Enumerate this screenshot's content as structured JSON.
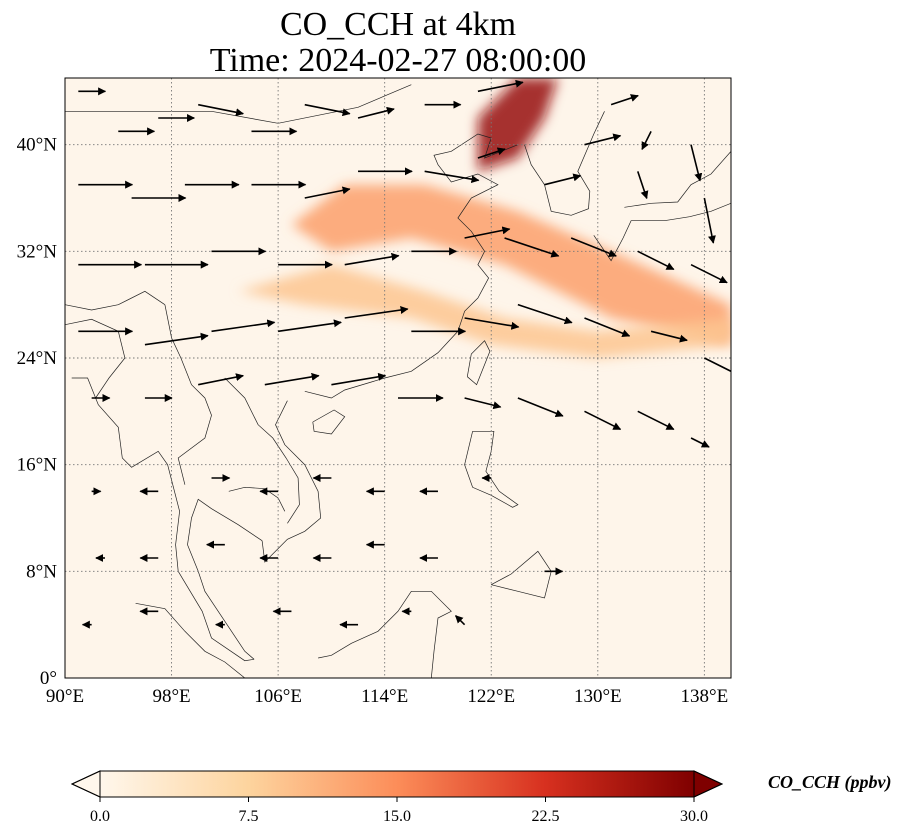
{
  "title": {
    "line1": "CO_CCH at 4km",
    "line2": "Time: 2024-02-27 08:00:00"
  },
  "map": {
    "projection": "PlateCarree",
    "lon_range": [
      90,
      140
    ],
    "lat_range": [
      0,
      45
    ],
    "lat_ticks": [
      {
        "value": 0,
        "label": "0°"
      },
      {
        "value": 8,
        "label": "8°N"
      },
      {
        "value": 16,
        "label": "16°N"
      },
      {
        "value": 24,
        "label": "24°N"
      },
      {
        "value": 32,
        "label": "32°N"
      },
      {
        "value": 40,
        "label": "40°N"
      }
    ],
    "lon_ticks": [
      {
        "value": 90,
        "label": "90°E"
      },
      {
        "value": 98,
        "label": "98°E"
      },
      {
        "value": 106,
        "label": "106°E"
      },
      {
        "value": 114,
        "label": "114°E"
      },
      {
        "value": 122,
        "label": "122°E"
      },
      {
        "value": 130,
        "label": "130°E"
      },
      {
        "value": 138,
        "label": "138°E"
      }
    ],
    "gridlines": "dotted",
    "background_color": "#fef5ea"
  },
  "colorbar": {
    "label": "CO_CCH (ppbv)",
    "min": 0.0,
    "max": 30.0,
    "extend": "both",
    "colormap": "OrRd",
    "ticks": [
      {
        "value": 0.0,
        "label": "0.0"
      },
      {
        "value": 7.5,
        "label": "7.5"
      },
      {
        "value": 15.0,
        "label": "15.0"
      },
      {
        "value": 22.5,
        "label": "22.5"
      },
      {
        "value": 30.0,
        "label": "30.0"
      }
    ],
    "stops": [
      "#fff7ec",
      "#fdd49e",
      "#fc8d59",
      "#d7301f",
      "#7f0000"
    ]
  },
  "plumes": [
    {
      "name": "northern-plume",
      "lonlat": [
        [
          121,
          42
        ],
        [
          124,
          45
        ],
        [
          127,
          45
        ],
        [
          126,
          42
        ],
        [
          124,
          39
        ],
        [
          121,
          38
        ]
      ],
      "value": 28
    },
    {
      "name": "central-band",
      "lonlat": [
        [
          107,
          34
        ],
        [
          111,
          37
        ],
        [
          117,
          37
        ],
        [
          124,
          35
        ],
        [
          131,
          32
        ],
        [
          140,
          28
        ],
        [
          140,
          25
        ],
        [
          131,
          27
        ],
        [
          123,
          31
        ],
        [
          116,
          33
        ],
        [
          110,
          32
        ]
      ],
      "value": 13
    },
    {
      "name": "southern-band",
      "lonlat": [
        [
          103,
          29
        ],
        [
          110,
          31
        ],
        [
          117,
          29
        ],
        [
          123,
          27
        ],
        [
          130,
          26
        ],
        [
          140,
          27
        ],
        [
          140,
          25
        ],
        [
          130,
          24
        ],
        [
          122,
          25
        ],
        [
          116,
          27
        ],
        [
          108,
          28
        ]
      ],
      "value": 9
    }
  ],
  "wind_vectors": [
    {
      "lon": 91,
      "lat": 44,
      "u": 3,
      "v": 0
    },
    {
      "lon": 94,
      "lat": 41,
      "u": 4,
      "v": 0
    },
    {
      "lon": 97,
      "lat": 42,
      "u": 4,
      "v": 0
    },
    {
      "lon": 100,
      "lat": 43,
      "u": 5,
      "v": -1
    },
    {
      "lon": 104,
      "lat": 41,
      "u": 5,
      "v": 0
    },
    {
      "lon": 108,
      "lat": 43,
      "u": 5,
      "v": -1
    },
    {
      "lon": 112,
      "lat": 42,
      "u": 4,
      "v": 1
    },
    {
      "lon": 117,
      "lat": 43,
      "u": 4,
      "v": 0
    },
    {
      "lon": 121,
      "lat": 44,
      "u": 5,
      "v": 1
    },
    {
      "lon": 131,
      "lat": 43,
      "u": 3,
      "v": 1
    },
    {
      "lon": 134,
      "lat": 41,
      "u": -1,
      "v": -2
    },
    {
      "lon": 137,
      "lat": 40,
      "u": 1,
      "v": -4
    },
    {
      "lon": 91,
      "lat": 37,
      "u": 6,
      "v": 0
    },
    {
      "lon": 95,
      "lat": 36,
      "u": 6,
      "v": 0
    },
    {
      "lon": 99,
      "lat": 37,
      "u": 6,
      "v": 0
    },
    {
      "lon": 104,
      "lat": 37,
      "u": 6,
      "v": 0
    },
    {
      "lon": 108,
      "lat": 36,
      "u": 5,
      "v": 1
    },
    {
      "lon": 112,
      "lat": 38,
      "u": 6,
      "v": 0
    },
    {
      "lon": 117,
      "lat": 38,
      "u": 6,
      "v": -1
    },
    {
      "lon": 121,
      "lat": 39,
      "u": 3,
      "v": 1
    },
    {
      "lon": 126,
      "lat": 37,
      "u": 4,
      "v": 1
    },
    {
      "lon": 129,
      "lat": 40,
      "u": 4,
      "v": 1
    },
    {
      "lon": 133,
      "lat": 38,
      "u": 1,
      "v": -3
    },
    {
      "lon": 138,
      "lat": 36,
      "u": 1,
      "v": -5
    },
    {
      "lon": 91,
      "lat": 31,
      "u": 7,
      "v": 0
    },
    {
      "lon": 96,
      "lat": 31,
      "u": 7,
      "v": 0
    },
    {
      "lon": 101,
      "lat": 32,
      "u": 6,
      "v": 0
    },
    {
      "lon": 106,
      "lat": 31,
      "u": 6,
      "v": 0
    },
    {
      "lon": 111,
      "lat": 31,
      "u": 6,
      "v": 1
    },
    {
      "lon": 116,
      "lat": 32,
      "u": 5,
      "v": 0
    },
    {
      "lon": 120,
      "lat": 33,
      "u": 5,
      "v": 1
    },
    {
      "lon": 123,
      "lat": 33,
      "u": 6,
      "v": -2
    },
    {
      "lon": 128,
      "lat": 33,
      "u": 5,
      "v": -2
    },
    {
      "lon": 133,
      "lat": 32,
      "u": 4,
      "v": -2
    },
    {
      "lon": 137,
      "lat": 31,
      "u": 4,
      "v": -2
    },
    {
      "lon": 91,
      "lat": 26,
      "u": 6,
      "v": 0
    },
    {
      "lon": 96,
      "lat": 25,
      "u": 7,
      "v": 1
    },
    {
      "lon": 101,
      "lat": 26,
      "u": 7,
      "v": 1
    },
    {
      "lon": 106,
      "lat": 26,
      "u": 7,
      "v": 1
    },
    {
      "lon": 111,
      "lat": 27,
      "u": 7,
      "v": 1
    },
    {
      "lon": 116,
      "lat": 26,
      "u": 6,
      "v": 0
    },
    {
      "lon": 120,
      "lat": 27,
      "u": 6,
      "v": -1
    },
    {
      "lon": 124,
      "lat": 28,
      "u": 6,
      "v": -2
    },
    {
      "lon": 129,
      "lat": 27,
      "u": 5,
      "v": -2
    },
    {
      "lon": 134,
      "lat": 26,
      "u": 4,
      "v": -1
    },
    {
      "lon": 138,
      "lat": 24,
      "u": 4,
      "v": -2
    },
    {
      "lon": 92,
      "lat": 21,
      "u": 2,
      "v": 0
    },
    {
      "lon": 96,
      "lat": 21,
      "u": 3,
      "v": 0
    },
    {
      "lon": 100,
      "lat": 22,
      "u": 5,
      "v": 1
    },
    {
      "lon": 105,
      "lat": 22,
      "u": 6,
      "v": 1
    },
    {
      "lon": 110,
      "lat": 22,
      "u": 6,
      "v": 1
    },
    {
      "lon": 115,
      "lat": 21,
      "u": 5,
      "v": 0
    },
    {
      "lon": 120,
      "lat": 21,
      "u": 4,
      "v": -1
    },
    {
      "lon": 124,
      "lat": 21,
      "u": 5,
      "v": -2
    },
    {
      "lon": 129,
      "lat": 20,
      "u": 4,
      "v": -2
    },
    {
      "lon": 133,
      "lat": 20,
      "u": 4,
      "v": -2
    },
    {
      "lon": 137,
      "lat": 18,
      "u": 2,
      "v": -1
    },
    {
      "lon": 92,
      "lat": 14,
      "u": 1,
      "v": 0
    },
    {
      "lon": 97,
      "lat": 14,
      "u": -2,
      "v": 0
    },
    {
      "lon": 101,
      "lat": 15,
      "u": 2,
      "v": 0
    },
    {
      "lon": 106,
      "lat": 14,
      "u": -2,
      "v": 0
    },
    {
      "lon": 110,
      "lat": 15,
      "u": -2,
      "v": 0
    },
    {
      "lon": 114,
      "lat": 14,
      "u": -2,
      "v": 0
    },
    {
      "lon": 118,
      "lat": 14,
      "u": -2,
      "v": 0
    },
    {
      "lon": 122,
      "lat": 15,
      "u": -1,
      "v": 0
    },
    {
      "lon": 93,
      "lat": 9,
      "u": -1,
      "v": 0
    },
    {
      "lon": 97,
      "lat": 9,
      "u": -2,
      "v": 0
    },
    {
      "lon": 102,
      "lat": 10,
      "u": -2,
      "v": 0
    },
    {
      "lon": 106,
      "lat": 9,
      "u": -2,
      "v": 0
    },
    {
      "lon": 110,
      "lat": 9,
      "u": -2,
      "v": 0
    },
    {
      "lon": 114,
      "lat": 10,
      "u": -2,
      "v": 0
    },
    {
      "lon": 118,
      "lat": 9,
      "u": -2,
      "v": 0
    },
    {
      "lon": 126,
      "lat": 8,
      "u": 2,
      "v": 0
    },
    {
      "lon": 92,
      "lat": 4,
      "u": -1,
      "v": 0
    },
    {
      "lon": 97,
      "lat": 5,
      "u": -2,
      "v": 0
    },
    {
      "lon": 102,
      "lat": 4,
      "u": -1,
      "v": 0
    },
    {
      "lon": 107,
      "lat": 5,
      "u": -2,
      "v": 0
    },
    {
      "lon": 112,
      "lat": 4,
      "u": -2,
      "v": 0
    },
    {
      "lon": 116,
      "lat": 5,
      "u": -1,
      "v": 0
    },
    {
      "lon": 120,
      "lat": 4,
      "u": -1,
      "v": 1
    }
  ],
  "coastlines": [
    {
      "name": "china-coast",
      "lonlat": [
        [
          108,
          21.5
        ],
        [
          110,
          21
        ],
        [
          111,
          21.6
        ],
        [
          113,
          22.2
        ],
        [
          114,
          22.5
        ],
        [
          116,
          23
        ],
        [
          118,
          24.4
        ],
        [
          119.5,
          26
        ],
        [
          120,
          27.5
        ],
        [
          121,
          28.5
        ],
        [
          121.8,
          30
        ],
        [
          121,
          31
        ],
        [
          121.5,
          32
        ],
        [
          120.5,
          33.5
        ],
        [
          119.5,
          34.5
        ],
        [
          120.5,
          36
        ],
        [
          122.5,
          37
        ],
        [
          121,
          37.8
        ],
        [
          119,
          37.2
        ],
        [
          118,
          38.5
        ],
        [
          117.7,
          39.2
        ],
        [
          119,
          39.5
        ],
        [
          121,
          40.8
        ],
        [
          122,
          40.5
        ],
        [
          121.5,
          39
        ],
        [
          124,
          40
        ]
      ]
    },
    {
      "name": "korea",
      "lonlat": [
        [
          124.5,
          40
        ],
        [
          125,
          38.5
        ],
        [
          126,
          37
        ],
        [
          126.5,
          35
        ],
        [
          128,
          34.7
        ],
        [
          129.3,
          35.2
        ],
        [
          129.4,
          36.5
        ],
        [
          128.5,
          38
        ],
        [
          129.7,
          40.8
        ],
        [
          130.5,
          42.5
        ]
      ]
    },
    {
      "name": "japan",
      "lonlat": [
        [
          129.7,
          33.2
        ],
        [
          131,
          31.3
        ],
        [
          131.9,
          33
        ],
        [
          132.5,
          34.3
        ],
        [
          135,
          34.3
        ],
        [
          136.9,
          34.6
        ],
        [
          138.5,
          35
        ],
        [
          140,
          35.6
        ]
      ]
    },
    {
      "name": "japan-north",
      "lonlat": [
        [
          132,
          35.3
        ],
        [
          134,
          35.6
        ],
        [
          136,
          35.7
        ],
        [
          137,
          37
        ],
        [
          138.5,
          37.8
        ],
        [
          140,
          39.5
        ]
      ]
    },
    {
      "name": "taiwan",
      "lonlat": [
        [
          120.2,
          22.6
        ],
        [
          120.9,
          22
        ],
        [
          121.9,
          24.5
        ],
        [
          121.5,
          25.3
        ],
        [
          120.5,
          24.3
        ],
        [
          120.2,
          22.6
        ]
      ]
    },
    {
      "name": "hainan",
      "lonlat": [
        [
          108.6,
          19.2
        ],
        [
          110.2,
          20.1
        ],
        [
          111,
          19.6
        ],
        [
          110,
          18.3
        ],
        [
          108.7,
          18.5
        ],
        [
          108.6,
          19.2
        ]
      ]
    },
    {
      "name": "vietnam-coast",
      "lonlat": [
        [
          106.7,
          20.8
        ],
        [
          105.8,
          19
        ],
        [
          106.5,
          17.5
        ],
        [
          108,
          16
        ],
        [
          109,
          14
        ],
        [
          109.2,
          12
        ],
        [
          108,
          11
        ],
        [
          106.7,
          10.4
        ],
        [
          105,
          8.7
        ],
        [
          104.8,
          10.3
        ]
      ]
    },
    {
      "name": "gulf-thailand",
      "lonlat": [
        [
          104.8,
          10.3
        ],
        [
          103,
          11.5
        ],
        [
          101,
          12.7
        ],
        [
          100,
          13.4
        ],
        [
          99.5,
          12
        ],
        [
          99.2,
          10
        ],
        [
          100,
          8
        ],
        [
          100.5,
          6.5
        ],
        [
          101.5,
          5
        ],
        [
          103.5,
          2
        ],
        [
          104.2,
          1.4
        ]
      ]
    },
    {
      "name": "malay-west",
      "lonlat": [
        [
          98.5,
          8
        ],
        [
          98.3,
          10
        ],
        [
          98.6,
          12.5
        ],
        [
          97.7,
          16
        ],
        [
          97,
          17
        ],
        [
          95,
          15.8
        ],
        [
          94.3,
          16.5
        ],
        [
          94,
          18.8
        ],
        [
          92.5,
          20.5
        ],
        [
          91.7,
          22.5
        ],
        [
          90.5,
          22.5
        ]
      ]
    },
    {
      "name": "malay-south",
      "lonlat": [
        [
          98.5,
          8
        ],
        [
          100.3,
          5
        ],
        [
          101,
          3
        ],
        [
          103.5,
          1.3
        ],
        [
          104.2,
          1.4
        ]
      ]
    },
    {
      "name": "borneo",
      "lonlat": [
        [
          109,
          1.5
        ],
        [
          110,
          1.7
        ],
        [
          111.5,
          2.6
        ],
        [
          113.5,
          3.5
        ],
        [
          115,
          5
        ],
        [
          116,
          6.5
        ],
        [
          117.5,
          6.5
        ],
        [
          119,
          5
        ],
        [
          118,
          4.5
        ],
        [
          117.7,
          2
        ],
        [
          117.5,
          0
        ]
      ]
    },
    {
      "name": "luzon",
      "lonlat": [
        [
          120.6,
          18.5
        ],
        [
          122.2,
          18.5
        ],
        [
          122,
          17
        ],
        [
          121.6,
          15.5
        ],
        [
          122.6,
          14
        ],
        [
          124,
          13
        ],
        [
          123.6,
          12.8
        ],
        [
          122,
          13.7
        ],
        [
          120.6,
          14.3
        ],
        [
          120,
          16
        ],
        [
          120.6,
          18.5
        ]
      ]
    },
    {
      "name": "mindanao",
      "lonlat": [
        [
          122,
          7
        ],
        [
          123.5,
          7.8
        ],
        [
          125.5,
          9.5
        ],
        [
          126.5,
          8
        ],
        [
          126,
          6
        ],
        [
          124,
          6.5
        ],
        [
          122,
          7
        ]
      ]
    },
    {
      "name": "sumatra",
      "lonlat": [
        [
          95.3,
          5.6
        ],
        [
          97.5,
          5.2
        ],
        [
          99,
          3.5
        ],
        [
          100.5,
          2
        ],
        [
          102,
          1.2
        ],
        [
          103.5,
          0
        ]
      ]
    },
    {
      "name": "vietnam-laos-border",
      "lonlat": [
        [
          102,
          22.5
        ],
        [
          103.5,
          21
        ],
        [
          104.5,
          19
        ],
        [
          105.6,
          18
        ],
        [
          106.6,
          16.5
        ],
        [
          107.5,
          15
        ],
        [
          107.6,
          13
        ],
        [
          106.7,
          11.6
        ]
      ]
    },
    {
      "name": "myanmar-border",
      "lonlat": [
        [
          97.5,
          28
        ],
        [
          98,
          25.5
        ],
        [
          98.7,
          24
        ],
        [
          99.5,
          22
        ],
        [
          100.5,
          21
        ],
        [
          101,
          19.7
        ],
        [
          100.5,
          18
        ],
        [
          98.5,
          16.5
        ],
        [
          99,
          14.5
        ]
      ]
    },
    {
      "name": "cambodia-border",
      "lonlat": [
        [
          102.3,
          14
        ],
        [
          103.5,
          14.3
        ],
        [
          105,
          14.2
        ],
        [
          106,
          13.5
        ],
        [
          106.5,
          12.5
        ]
      ]
    },
    {
      "name": "china-inland-border",
      "lonlat": [
        [
          97.5,
          28
        ],
        [
          96,
          29
        ],
        [
          94,
          28
        ],
        [
          92,
          27.6
        ],
        [
          90,
          28
        ]
      ]
    },
    {
      "name": "mongolia-border",
      "lonlat": [
        [
          90,
          42.5
        ],
        [
          96,
          42.5
        ],
        [
          101,
          42.5
        ],
        [
          106,
          41.6
        ],
        [
          112,
          42.8
        ],
        [
          116,
          44.5
        ]
      ]
    },
    {
      "name": "india-border",
      "lonlat": [
        [
          90,
          26.5
        ],
        [
          92,
          26.9
        ],
        [
          94,
          26
        ],
        [
          94.5,
          24
        ],
        [
          93.3,
          22.5
        ],
        [
          92.3,
          21
        ]
      ]
    }
  ]
}
